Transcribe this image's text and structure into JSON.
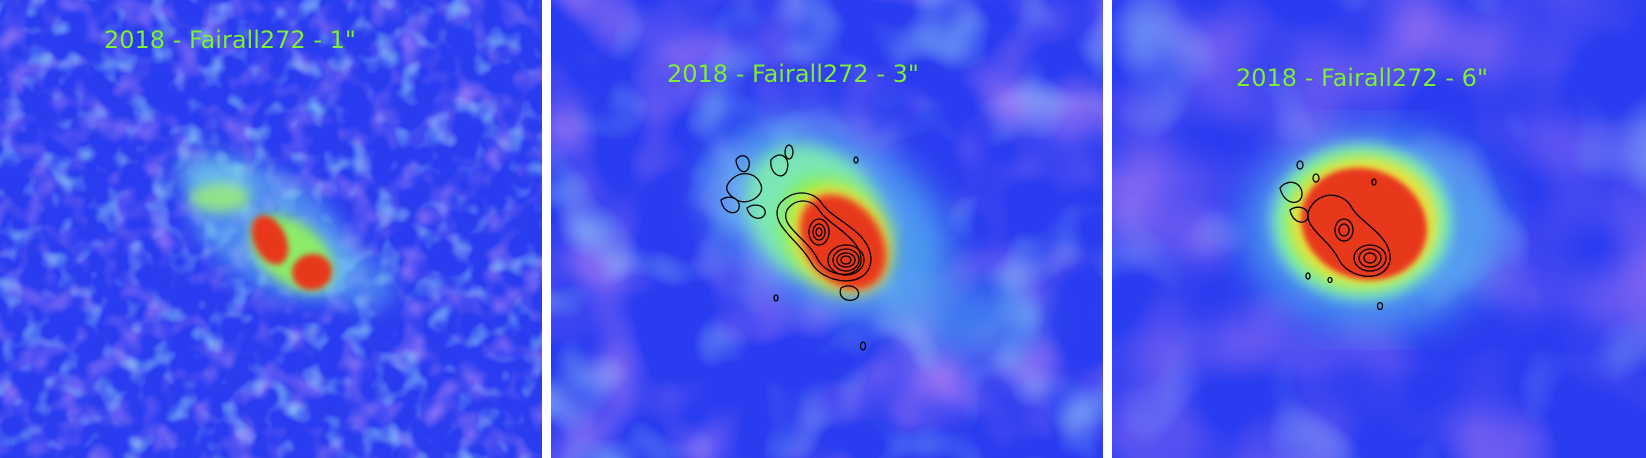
{
  "panels": [
    {
      "title": "2018 - Fairall272 - 1\""
    },
    {
      "title": "2018 - Fairall272 - 3\""
    },
    {
      "title": "2018 - Fairall272 - 6\""
    }
  ],
  "colors": {
    "background": "#2a3cf0",
    "purple": "#8a3ae8",
    "cyan": "#58c8f0",
    "green": "#7ef03c",
    "yellow": "#f0e040",
    "red": "#e8381e",
    "contour": "#000000",
    "title": "#7ef03c",
    "separator": "#ffffff"
  }
}
